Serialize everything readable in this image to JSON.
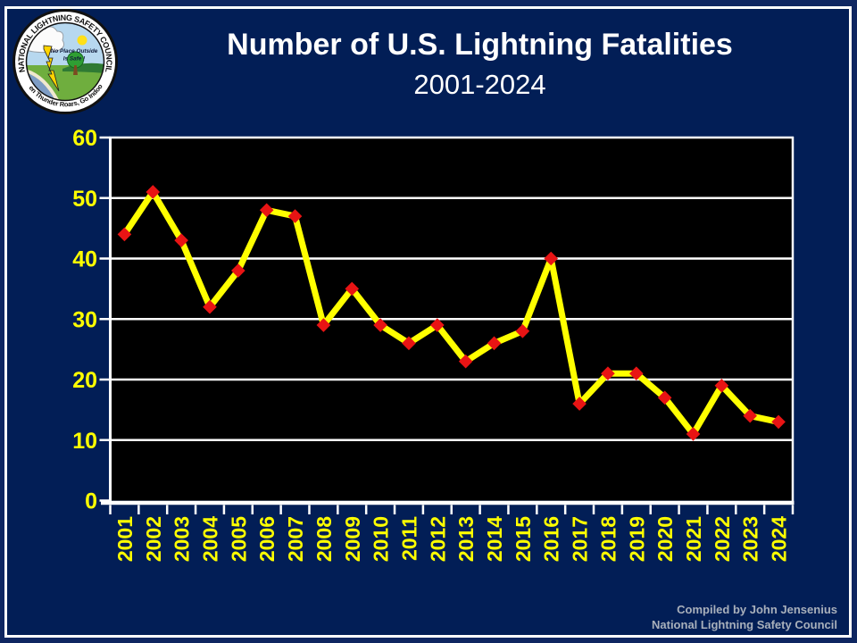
{
  "slide": {
    "title": "Number of U.S. Lightning Fatalities",
    "subtitle": "2001-2024",
    "attribution_lines": [
      "Compiled by John Jensenius",
      "National Lightning Safety Council"
    ]
  },
  "logo": {
    "ring_text_top": "NATIONAL LIGHTNING SAFETY COUNCIL",
    "ring_text_bottom": "When Thunder Roars, Go Indoors!",
    "center_text_line1": "No Place Outside",
    "center_text_line2": "Is Safe !"
  },
  "chart_data": {
    "type": "line",
    "title": "Number of U.S. Lightning Fatalities",
    "subtitle": "2001-2024",
    "categories": [
      "2001",
      "2002",
      "2003",
      "2004",
      "2005",
      "2006",
      "2007",
      "2008",
      "2009",
      "2010",
      "2011",
      "2012",
      "2013",
      "2014",
      "2015",
      "2016",
      "2017",
      "2018",
      "2019",
      "2020",
      "2021",
      "2022",
      "2023",
      "2024"
    ],
    "values": [
      44,
      51,
      43,
      32,
      38,
      48,
      47,
      29,
      35,
      29,
      26,
      29,
      23,
      26,
      28,
      40,
      16,
      21,
      21,
      17,
      11,
      19,
      14,
      13
    ],
    "xlabel": "",
    "ylabel": "",
    "ylim": [
      0,
      60
    ],
    "yticks": [
      0,
      10,
      20,
      30,
      40,
      50,
      60
    ],
    "grid": true,
    "legend": false,
    "plot_background": "#000000",
    "gridline_color": "#ffffff",
    "line_color": "#ffff00",
    "marker": "diamond",
    "marker_color": "#e81414",
    "tick_label_color": "#ffff00"
  },
  "colors": {
    "slide_background": "#021e56",
    "outer_band": "#0e2661",
    "frame_border": "#ffffff",
    "title_text": "#ffffff",
    "attribution_text": "#a9b0bb"
  }
}
